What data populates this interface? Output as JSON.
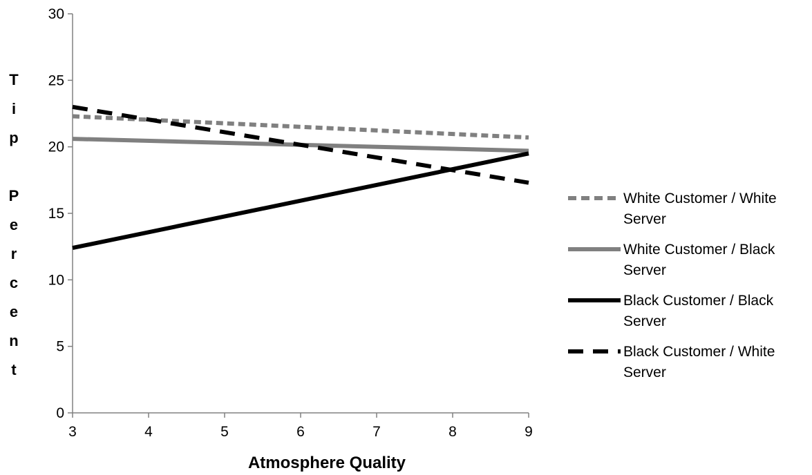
{
  "chart_data": {
    "type": "line",
    "title": "",
    "xlabel": "Atmosphere Quality",
    "ylabel": "Tip Percent",
    "xlim": [
      3,
      9
    ],
    "ylim": [
      0,
      30
    ],
    "x_ticks": [
      3,
      4,
      5,
      6,
      7,
      8,
      9
    ],
    "y_ticks": [
      0,
      5,
      10,
      15,
      20,
      25,
      30
    ],
    "grid": false,
    "legend_position": "right",
    "series": [
      {
        "name": "White Customer / White Server",
        "legend_lines": [
          "White Customer / White",
          "Server"
        ],
        "color": "#808080",
        "style": "short-dash",
        "x": [
          3,
          9
        ],
        "y": [
          22.3,
          20.7
        ]
      },
      {
        "name": "White Customer / Black Server",
        "legend_lines": [
          "White Customer / Black",
          "Server"
        ],
        "color": "#808080",
        "style": "solid",
        "x": [
          3,
          9
        ],
        "y": [
          20.6,
          19.7
        ]
      },
      {
        "name": "Black Customer / Black Server",
        "legend_lines": [
          "Black Customer / Black",
          "Server"
        ],
        "color": "#000000",
        "style": "solid",
        "x": [
          3,
          9
        ],
        "y": [
          12.4,
          19.5
        ]
      },
      {
        "name": "Black Customer / White Server",
        "legend_lines": [
          "Black Customer / White",
          "Server"
        ],
        "color": "#000000",
        "style": "long-dash",
        "x": [
          3,
          9
        ],
        "y": [
          23.0,
          17.3
        ]
      }
    ]
  }
}
